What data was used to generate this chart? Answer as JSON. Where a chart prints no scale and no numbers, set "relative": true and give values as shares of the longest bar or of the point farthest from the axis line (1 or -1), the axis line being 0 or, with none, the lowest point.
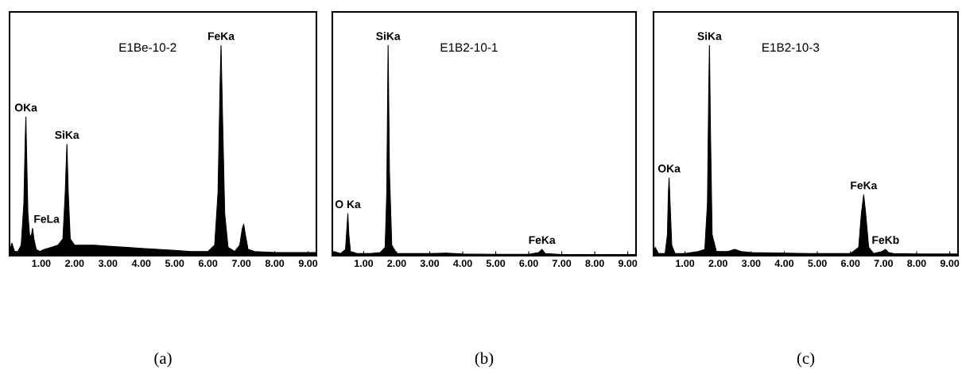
{
  "chart_data": [
    {
      "type": "area",
      "title": "(a)",
      "subtitle": "E1Be-10-2",
      "relative": true,
      "xlim": [
        0.05,
        9.25
      ],
      "xticks": [
        {
          "value": 1,
          "label": "1.00"
        },
        {
          "value": 2,
          "label": "2.00"
        },
        {
          "value": 3,
          "label": "3.00"
        },
        {
          "value": 4,
          "label": "4.00"
        },
        {
          "value": 5,
          "label": "5.00"
        },
        {
          "value": 6,
          "label": "6.00"
        },
        {
          "value": 7,
          "label": "7.00"
        },
        {
          "value": 8,
          "label": "8.00"
        },
        {
          "value": 9,
          "label": "9.00"
        }
      ],
      "tick_labels": "x",
      "grid": false,
      "legend": false,
      "annotations": [
        {
          "text": "OKa",
          "x": 0.54,
          "y": 0.66
        },
        {
          "text": "FeLa",
          "x": 0.74,
          "y": 0.13
        },
        {
          "text": "SiKa",
          "x": 1.77,
          "y": 0.53
        },
        {
          "text": "FeKa",
          "x": 6.39,
          "y": 1.0
        }
      ],
      "series": [
        {
          "color": "#000000",
          "x": [
            0.05,
            0.12,
            0.2,
            0.3,
            0.4,
            0.48,
            0.52,
            0.54,
            0.56,
            0.6,
            0.65,
            0.7,
            0.74,
            0.78,
            0.85,
            0.95,
            1.1,
            1.3,
            1.5,
            1.65,
            1.72,
            1.77,
            1.81,
            1.87,
            2.0,
            2.3,
            2.6,
            3.0,
            3.5,
            4.0,
            4.5,
            5.0,
            5.5,
            6.0,
            6.2,
            6.3,
            6.36,
            6.39,
            6.43,
            6.5,
            6.6,
            6.8,
            6.95,
            7.03,
            7.07,
            7.12,
            7.2,
            7.4,
            8.0,
            8.5,
            9.0,
            9.25
          ],
          "values": [
            0.02,
            0.06,
            0.02,
            0.02,
            0.05,
            0.25,
            0.55,
            0.66,
            0.5,
            0.2,
            0.1,
            0.09,
            0.13,
            0.08,
            0.03,
            0.02,
            0.03,
            0.04,
            0.05,
            0.08,
            0.3,
            0.53,
            0.3,
            0.08,
            0.05,
            0.05,
            0.05,
            0.045,
            0.04,
            0.035,
            0.03,
            0.025,
            0.02,
            0.02,
            0.05,
            0.3,
            0.8,
            1.0,
            0.7,
            0.2,
            0.04,
            0.02,
            0.05,
            0.13,
            0.15,
            0.1,
            0.03,
            0.02,
            0.015,
            0.015,
            0.015,
            0.015
          ]
        }
      ]
    },
    {
      "type": "area",
      "title": "(b)",
      "subtitle": "E1B2-10-1",
      "relative": true,
      "xlim": [
        0.05,
        9.25
      ],
      "xticks": [
        {
          "value": 1,
          "label": "1.00"
        },
        {
          "value": 2,
          "label": "2.00"
        },
        {
          "value": 3,
          "label": "3.00"
        },
        {
          "value": 4,
          "label": "4.00"
        },
        {
          "value": 5,
          "label": "5.00"
        },
        {
          "value": 6,
          "label": "6.00"
        },
        {
          "value": 7,
          "label": "7.00"
        },
        {
          "value": 8,
          "label": "8.00"
        },
        {
          "value": 9,
          "label": "9.00"
        }
      ],
      "tick_labels": "x",
      "grid": false,
      "legend": false,
      "annotations": [
        {
          "text": "O Ka",
          "x": 0.52,
          "y": 0.2
        },
        {
          "text": "SiKa",
          "x": 1.74,
          "y": 1.0
        },
        {
          "text": "FeKa",
          "x": 6.4,
          "y": 0.03
        }
      ],
      "series": [
        {
          "color": "#000000",
          "x": [
            0.05,
            0.1,
            0.3,
            0.45,
            0.5,
            0.52,
            0.55,
            0.6,
            0.8,
            1.2,
            1.5,
            1.65,
            1.7,
            1.74,
            1.78,
            1.85,
            2.0,
            3.0,
            3.5,
            4.0,
            5.0,
            6.0,
            6.3,
            6.4,
            6.5,
            7.0,
            9.25
          ],
          "values": [
            0.01,
            0.02,
            0.01,
            0.03,
            0.15,
            0.2,
            0.1,
            0.02,
            0.01,
            0.01,
            0.015,
            0.04,
            0.3,
            1.0,
            0.4,
            0.05,
            0.01,
            0.01,
            0.012,
            0.008,
            0.006,
            0.006,
            0.015,
            0.03,
            0.01,
            0.005,
            0.005
          ]
        }
      ]
    },
    {
      "type": "area",
      "title": "(c)",
      "subtitle": "E1B2-10-3",
      "relative": true,
      "xlim": [
        0.05,
        9.25
      ],
      "xticks": [
        {
          "value": 1,
          "label": "1.00"
        },
        {
          "value": 2,
          "label": "2.00"
        },
        {
          "value": 3,
          "label": "3.00"
        },
        {
          "value": 4,
          "label": "4.00"
        },
        {
          "value": 5,
          "label": "5.00"
        },
        {
          "value": 6,
          "label": "6.00"
        },
        {
          "value": 7,
          "label": "7.00"
        },
        {
          "value": 8,
          "label": "8.00"
        },
        {
          "value": 9,
          "label": "9.00"
        }
      ],
      "tick_labels": "x",
      "grid": false,
      "legend": false,
      "annotations": [
        {
          "text": "OKa",
          "x": 0.52,
          "y": 0.37
        },
        {
          "text": "SiKa",
          "x": 1.74,
          "y": 1.0
        },
        {
          "text": "FeKa",
          "x": 6.4,
          "y": 0.29
        },
        {
          "text": "FeKb",
          "x": 7.06,
          "y": 0.03
        }
      ],
      "series": [
        {
          "color": "#000000",
          "x": [
            0.05,
            0.1,
            0.2,
            0.4,
            0.47,
            0.5,
            0.52,
            0.55,
            0.6,
            0.7,
            1.0,
            1.4,
            1.6,
            1.68,
            1.72,
            1.74,
            1.77,
            1.82,
            1.95,
            2.3,
            2.5,
            2.7,
            3.0,
            4.0,
            5.0,
            6.0,
            6.25,
            6.33,
            6.4,
            6.46,
            6.55,
            6.7,
            6.95,
            7.06,
            7.15,
            7.3,
            8.0,
            9.25
          ],
          "values": [
            0.01,
            0.04,
            0.01,
            0.01,
            0.1,
            0.3,
            0.37,
            0.25,
            0.05,
            0.01,
            0.01,
            0.02,
            0.03,
            0.25,
            0.8,
            1.0,
            0.6,
            0.1,
            0.02,
            0.02,
            0.03,
            0.02,
            0.015,
            0.012,
            0.01,
            0.01,
            0.04,
            0.2,
            0.29,
            0.2,
            0.04,
            0.01,
            0.02,
            0.03,
            0.015,
            0.01,
            0.008,
            0.008
          ]
        }
      ]
    }
  ]
}
